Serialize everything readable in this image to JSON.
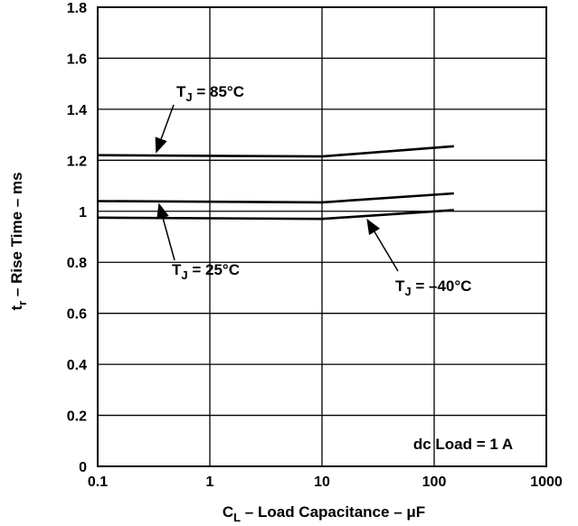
{
  "chart_data": {
    "type": "line",
    "x_scale": "log",
    "xlim": [
      0.1,
      1000
    ],
    "ylim": [
      0,
      1.8
    ],
    "grid": true,
    "x_ticks": [
      {
        "v": 0.1,
        "label": "0.1"
      },
      {
        "v": 1,
        "label": "1"
      },
      {
        "v": 10,
        "label": "10"
      },
      {
        "v": 100,
        "label": "100"
      },
      {
        "v": 1000,
        "label": "1000"
      }
    ],
    "y_ticks": [
      {
        "v": 0,
        "label": "0"
      },
      {
        "v": 0.2,
        "label": "0.2"
      },
      {
        "v": 0.4,
        "label": "0.4"
      },
      {
        "v": 0.6,
        "label": "0.6"
      },
      {
        "v": 0.8,
        "label": "0.8"
      },
      {
        "v": 1,
        "label": "1"
      },
      {
        "v": 1.2,
        "label": "1.2"
      },
      {
        "v": 1.4,
        "label": "1.4"
      },
      {
        "v": 1.6,
        "label": "1.6"
      },
      {
        "v": 1.8,
        "label": "1.8"
      }
    ],
    "xlabel": {
      "main": "C",
      "sub": "L",
      "rest": " – Load Capacitance – μF"
    },
    "ylabel": {
      "main": "t",
      "sub": "r",
      "rest": "  – Rise Time – ms"
    },
    "series": [
      {
        "name": "T_J = 85°C",
        "x": [
          0.1,
          10,
          150
        ],
        "y": [
          1.22,
          1.215,
          1.255
        ]
      },
      {
        "name": "T_J = 25°C",
        "x": [
          0.1,
          10,
          150
        ],
        "y": [
          1.04,
          1.035,
          1.07
        ]
      },
      {
        "name": "T_J = -40°C",
        "x": [
          0.1,
          10,
          150
        ],
        "y": [
          0.975,
          0.97,
          1.005
        ]
      }
    ],
    "annotations": [
      {
        "id": "t85",
        "main": "T",
        "sub": "J",
        "rest": " = 85°C",
        "series_index": 0
      },
      {
        "id": "t25",
        "main": "T",
        "sub": "J",
        "rest": " = 25°C",
        "series_index": 1
      },
      {
        "id": "tm40",
        "main": "T",
        "sub": "J",
        "rest": " = –40°C",
        "series_index": 2
      }
    ],
    "note": "dc Load = 1 A"
  }
}
